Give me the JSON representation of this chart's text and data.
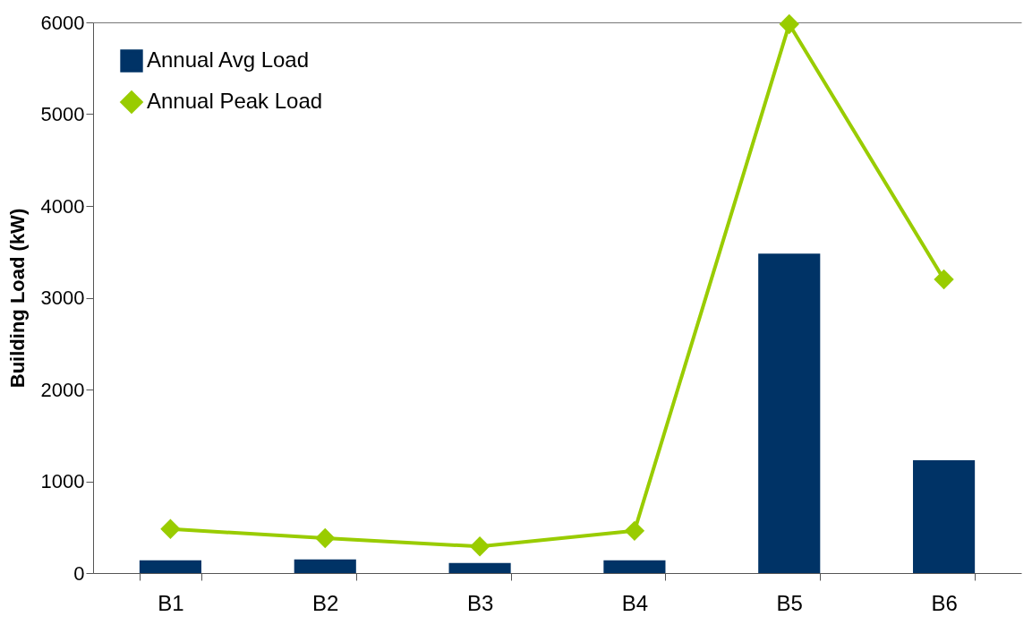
{
  "chart_data": {
    "type": "bar",
    "ylabel": "Building Load (kW)",
    "categories": [
      "B1",
      "B2",
      "B3",
      "B4",
      "B5",
      "B6"
    ],
    "series": [
      {
        "name": "Annual Avg Load",
        "color": "#003366",
        "values": [
          140,
          150,
          110,
          140,
          3480,
          1230
        ]
      },
      {
        "name": "Annual Peak Load",
        "type": "line",
        "color": "#99cc00",
        "marker": "diamond",
        "values": [
          480,
          380,
          290,
          460,
          5980,
          3200
        ]
      }
    ],
    "ylim": [
      0,
      6000
    ],
    "yticks": [
      0,
      1000,
      2000,
      3000,
      4000,
      5000,
      6000
    ],
    "grid": false,
    "legend": "top left"
  }
}
